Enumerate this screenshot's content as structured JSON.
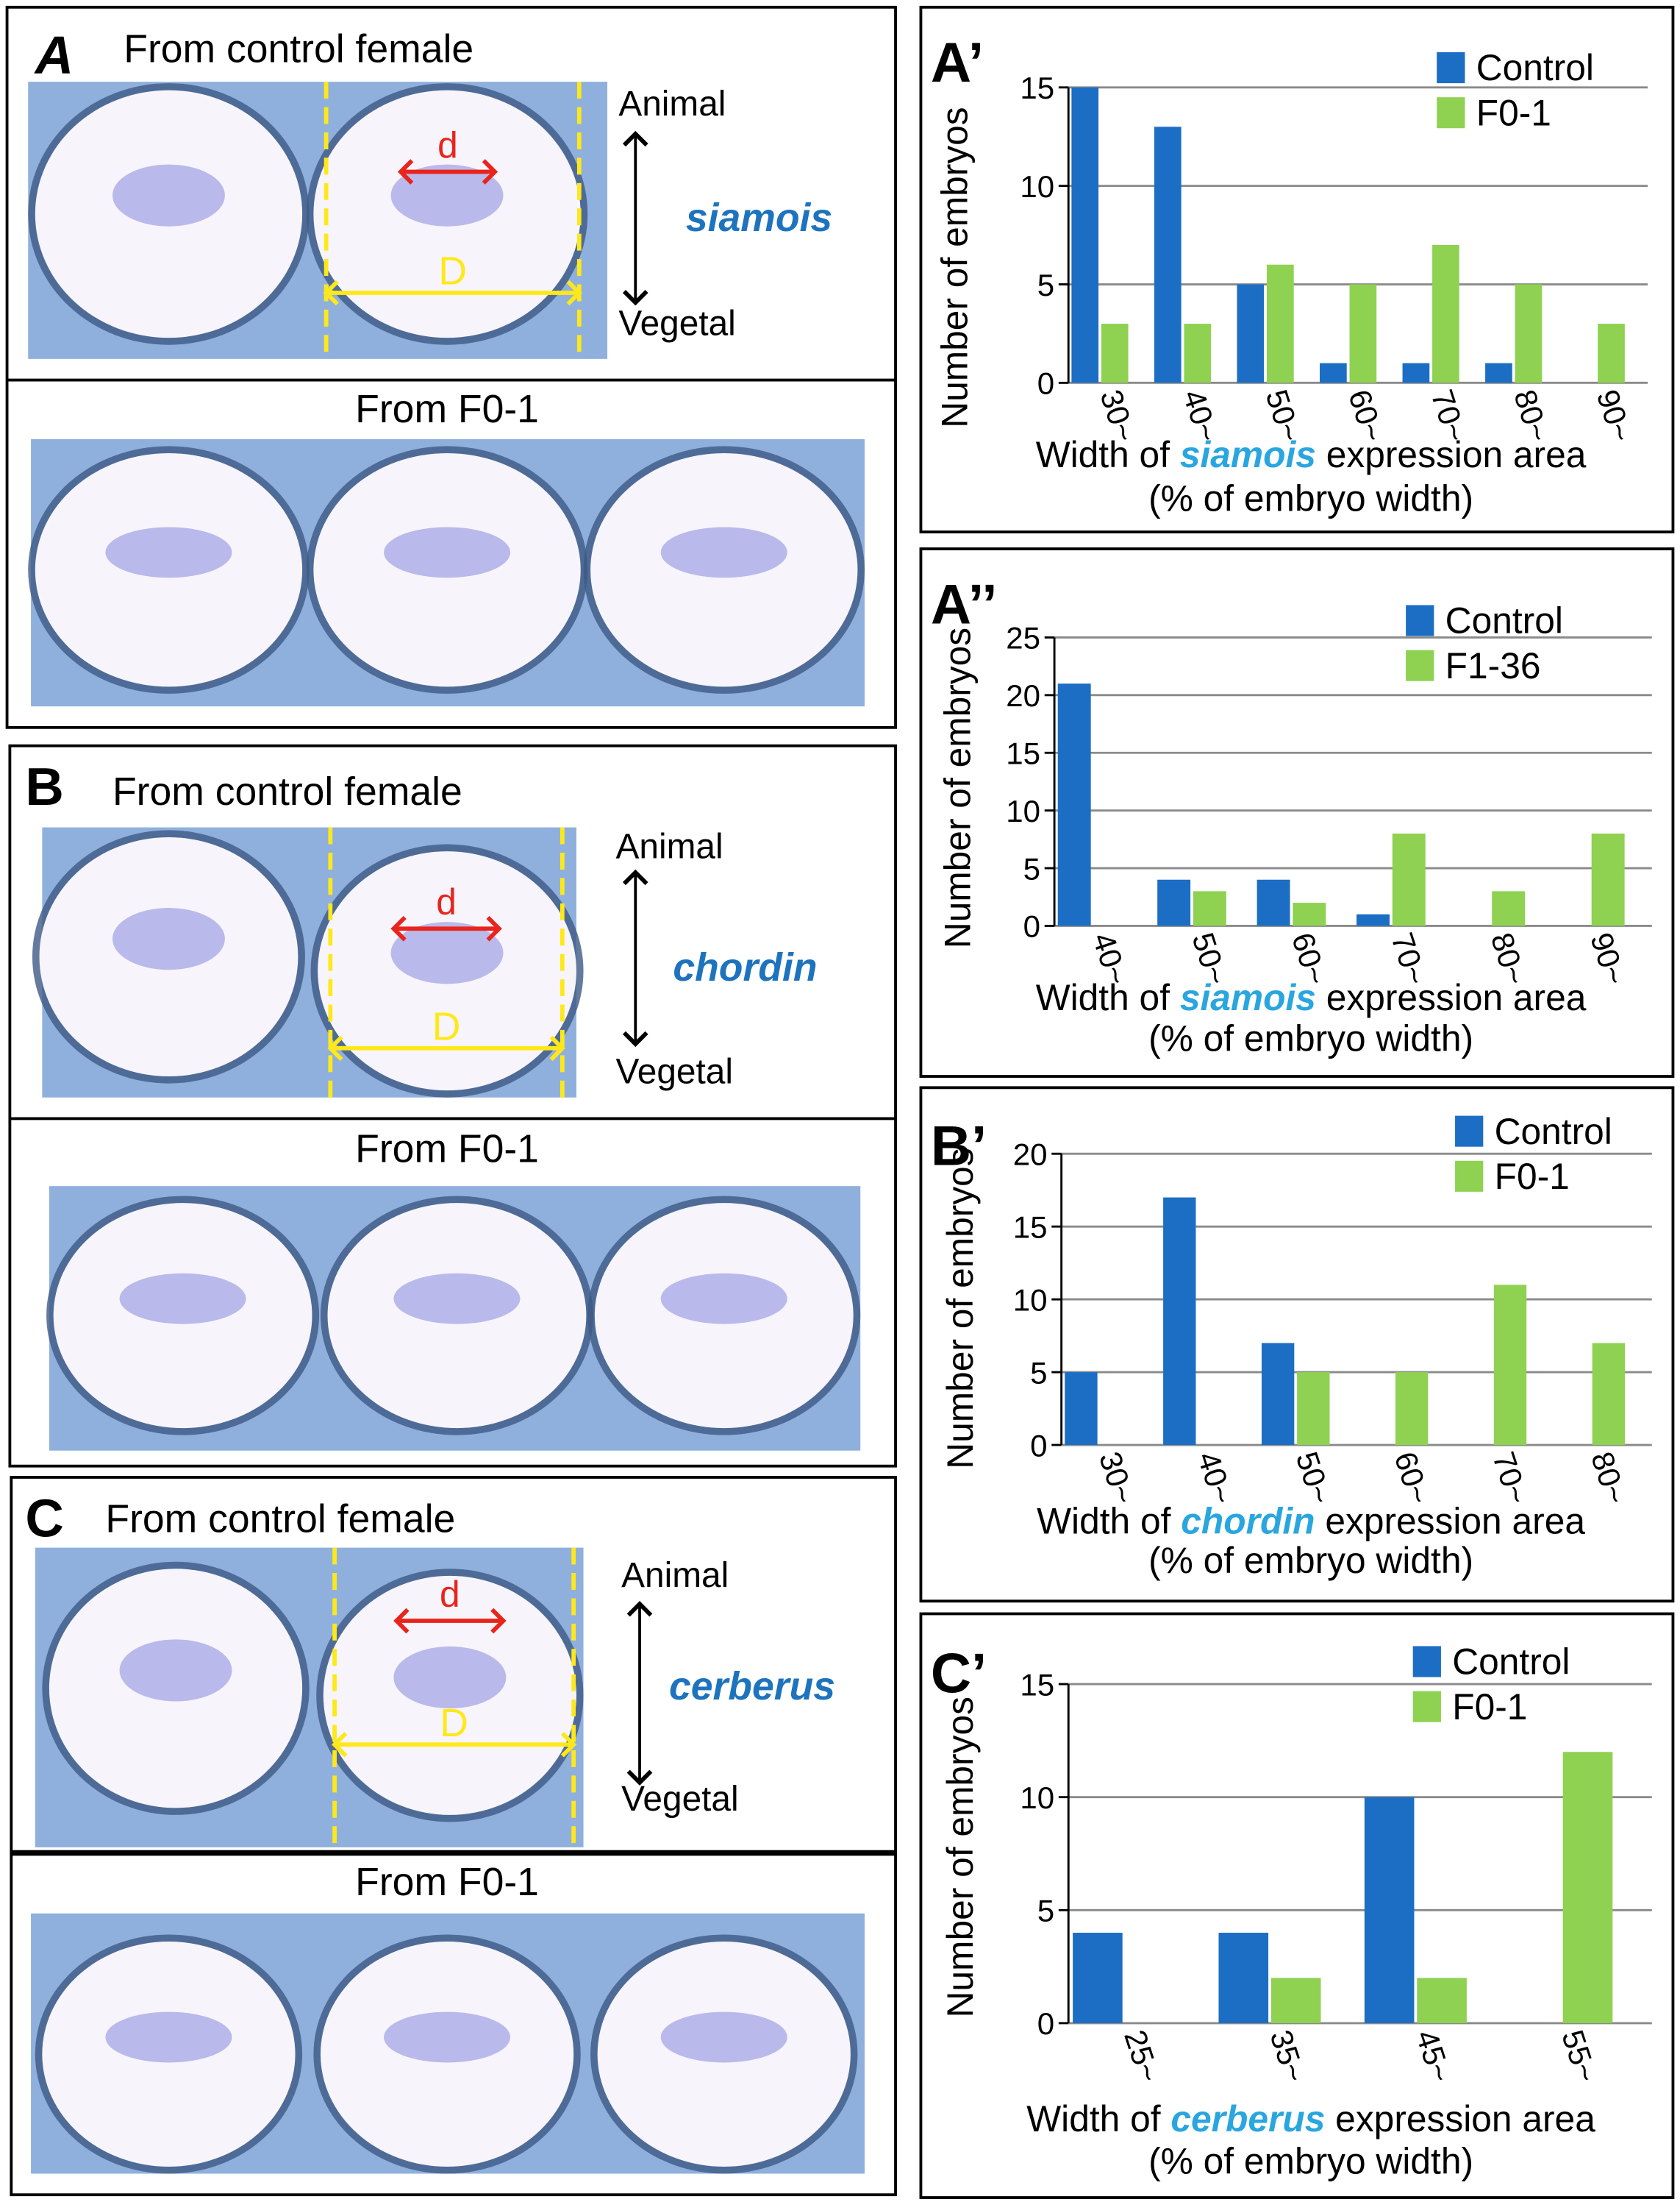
{
  "panels": [
    {
      "label": "A",
      "top_title": "From control female",
      "bottom_title": "From F0-1",
      "gene": "siamois",
      "animal": "Animal",
      "vegetal": "Vegetal",
      "small": "d",
      "large": "D"
    },
    {
      "label": "B",
      "top_title": "From control female",
      "bottom_title": "From F0-1",
      "gene": "chordin",
      "animal": "Animal",
      "vegetal": "Vegetal",
      "small": "d",
      "large": "D"
    },
    {
      "label": "C",
      "top_title": "From control female",
      "bottom_title": "From F0-1",
      "gene": "cerberus",
      "animal": "Animal",
      "vegetal": "Vegetal",
      "small": "d",
      "large": "D"
    }
  ],
  "chart_data": [
    {
      "type": "bar",
      "label": "A’",
      "categories": [
        "30~",
        "40~",
        "50~",
        "60~",
        "70~",
        "80~",
        "90~"
      ],
      "series": [
        {
          "name": "Control",
          "color": "#1b6ec4",
          "values": [
            15,
            13,
            5,
            1,
            1,
            1,
            null
          ]
        },
        {
          "name": "F0-1",
          "color": "#8fd150",
          "values": [
            3,
            3,
            6,
            5,
            7,
            5,
            3
          ]
        }
      ],
      "ylim": [
        0,
        15
      ],
      "yticks": [
        0,
        5,
        10,
        15
      ],
      "grid": true,
      "ylabel": "Number of embryos",
      "xlabel": [
        "Width of ",
        "siamois",
        " expression area"
      ],
      "xlabel_sub": "(% of embryo width)"
    },
    {
      "type": "bar",
      "label": "A’’",
      "categories": [
        "40~",
        "50~",
        "60~",
        "70~",
        "80~",
        "90~"
      ],
      "series": [
        {
          "name": "Control",
          "color": "#1b6ec4",
          "values": [
            21,
            4,
            4,
            1,
            null,
            null
          ]
        },
        {
          "name": "F1-36",
          "color": "#8fd150",
          "values": [
            null,
            3,
            2,
            8,
            3,
            8
          ]
        }
      ],
      "ylim": [
        0,
        25
      ],
      "yticks": [
        0,
        5,
        10,
        15,
        20,
        25
      ],
      "grid": true,
      "ylabel": "Number of embryos",
      "xlabel": [
        "Width of ",
        "siamois",
        " expression area"
      ],
      "xlabel_sub": "(% of embryo width)"
    },
    {
      "type": "bar",
      "label": "B’",
      "categories": [
        "30~",
        "40~",
        "50~",
        "60~",
        "70~",
        "80~"
      ],
      "series": [
        {
          "name": "Control",
          "color": "#1b6ec4",
          "values": [
            5,
            17,
            7,
            null,
            null,
            null
          ]
        },
        {
          "name": "F0-1",
          "color": "#8fd150",
          "values": [
            null,
            null,
            5,
            5,
            11,
            7
          ]
        }
      ],
      "ylim": [
        0,
        20
      ],
      "yticks": [
        0,
        5,
        10,
        15,
        20
      ],
      "grid": true,
      "ylabel": "Number of embryos",
      "xlabel": [
        "Width of ",
        "chordin",
        " expression area"
      ],
      "xlabel_sub": "(% of embryo width)"
    },
    {
      "type": "bar",
      "label": "C’",
      "categories": [
        "25~",
        "35~",
        "45~",
        "55~"
      ],
      "series": [
        {
          "name": "Control",
          "color": "#1b6ec4",
          "values": [
            4,
            4,
            10,
            null
          ]
        },
        {
          "name": "F0-1",
          "color": "#8fd150",
          "values": [
            null,
            2,
            2,
            12
          ]
        }
      ],
      "ylim": [
        0,
        15
      ],
      "yticks": [
        0,
        5,
        10,
        15
      ],
      "grid": true,
      "ylabel": "Number of embryos",
      "xlabel": [
        "Width of ",
        "cerberus",
        " expression area"
      ],
      "xlabel_sub": "(% of embryo width)"
    }
  ]
}
